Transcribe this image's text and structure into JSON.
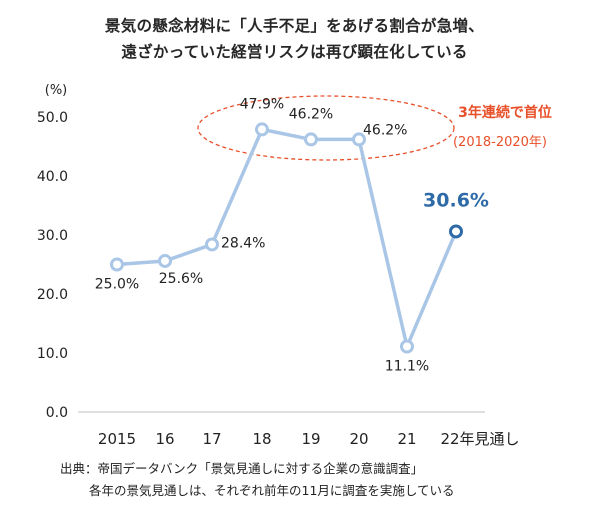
{
  "title_lines": [
    "景気の懸念材料に「人手不足」をあげる割合が急増、",
    "遠ざかっていた経営リスクは再び顕在化している"
  ],
  "source_lines": [
    "出典：帝国データバンク「景気見通しに対する企業の意識調査」",
    "各年の景気見通しは、それぞれ前年の11月に調査を実施している"
  ],
  "annotation": {
    "main": "3年連続で首位",
    "sub": "(2018-2020年)",
    "color": "#e8502a"
  },
  "colors": {
    "line": "#a9c6e6",
    "last_marker": "#2e6aa8",
    "highlight_label": "#2e6aa8"
  },
  "chart_data": {
    "type": "line",
    "yunit": "(%)",
    "categories": [
      "2015",
      "16",
      "17",
      "18",
      "19",
      "20",
      "21",
      "22年見通し"
    ],
    "values": [
      25.0,
      25.6,
      28.4,
      47.9,
      46.2,
      46.2,
      11.1,
      30.6
    ],
    "value_labels": [
      "25.0%",
      "25.6%",
      "28.4%",
      "47.9%",
      "46.2%",
      "46.2%",
      "11.1%",
      "30.6%"
    ],
    "ylim": [
      0,
      50
    ],
    "yticks": [
      "0.0",
      "10.0",
      "20.0",
      "30.0",
      "40.0",
      "50.0"
    ],
    "ytick_values": [
      0,
      10,
      20,
      30,
      40,
      50
    ],
    "grid": false,
    "legend": "none"
  }
}
